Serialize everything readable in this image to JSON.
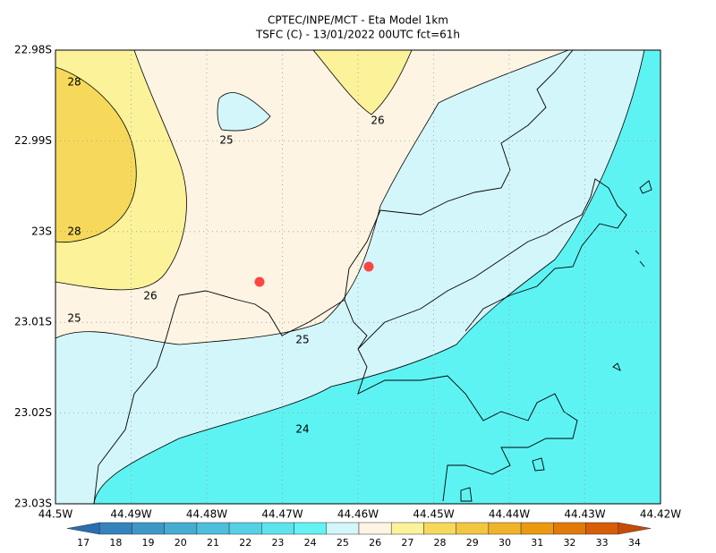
{
  "header": {
    "title": [
      "CPTEC/INPE/MCT -  Eta Model 1km",
      "TSFC (C) - 13/01/2022 00UTC fct=61h"
    ]
  },
  "map": {
    "y_labels": [
      "22.98S",
      "22.99S",
      "23S",
      "23.01S",
      "23.02S",
      "23.03S"
    ],
    "x_labels": [
      "44.5W",
      "44.49W",
      "44.48W",
      "44.47W",
      "44.46W",
      "44.45W",
      "44.44W",
      "44.43W",
      "44.42W"
    ],
    "contour_labels": [
      "28",
      "25",
      "26",
      "28",
      "26",
      "25",
      "25",
      "24"
    ]
  },
  "colorbar": {
    "labels": [
      17,
      18,
      19,
      20,
      21,
      22,
      23,
      24,
      25,
      26,
      27,
      28,
      29,
      30,
      31,
      32,
      33,
      34
    ],
    "colors": [
      "#2a6db0",
      "#3583bd",
      "#3d98c7",
      "#45acd2",
      "#4cbfdc",
      "#55d1e5",
      "#5de3ee",
      "#64f2f5",
      "#d3f6fa",
      "#fdf4e3",
      "#fbf29a",
      "#f6d95a",
      "#f2c640",
      "#f0b42a",
      "#eb9a10",
      "#e17a08",
      "#d65e06",
      "#c84a04"
    ]
  }
}
